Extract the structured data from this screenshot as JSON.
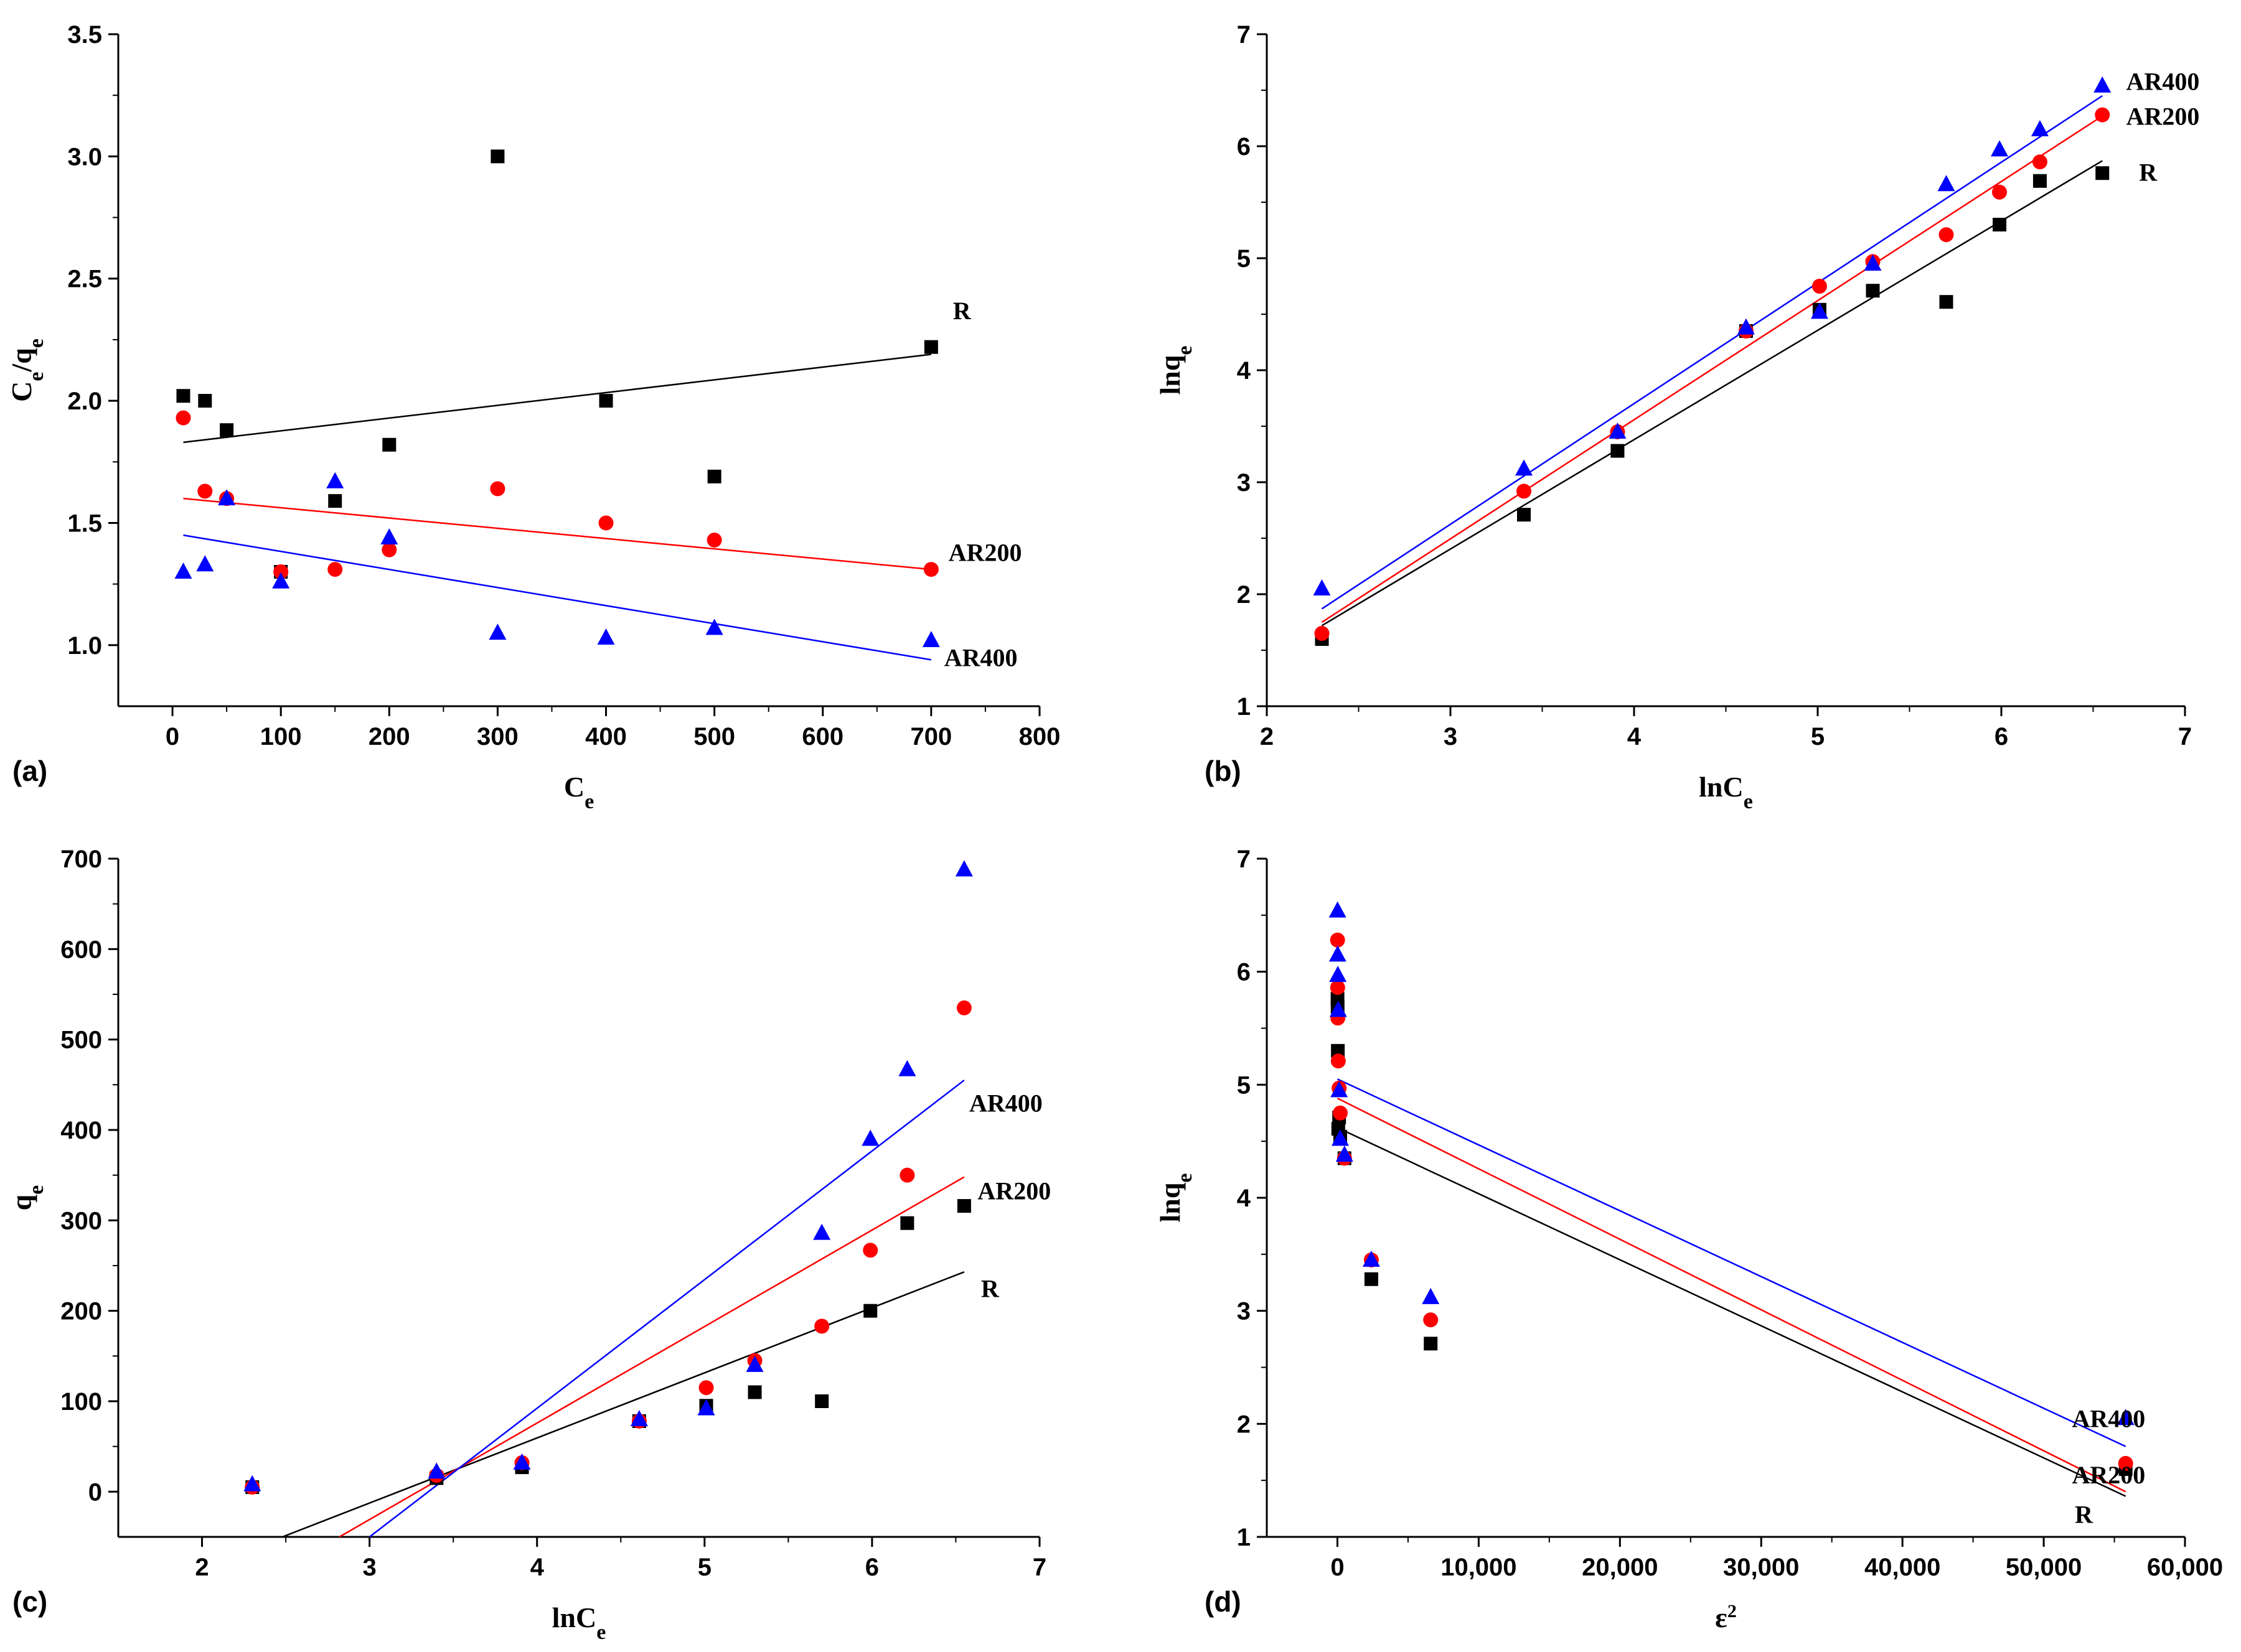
{
  "colors": {
    "R": "#000000",
    "AR200": "#ff0000",
    "AR400": "#0000ff"
  },
  "chart_data": [
    {
      "panel": "(a)",
      "type": "scatter",
      "xlabel": "C",
      "xlabel_sub": "e",
      "ylabel": "C",
      "ylabel_sub": "e",
      "ylabel_mid": "/q",
      "ylabel_sub2": "e",
      "xlim": [
        -50,
        800
      ],
      "ylim": [
        0.75,
        3.5
      ],
      "xticks": [
        0,
        100,
        200,
        300,
        400,
        500,
        600,
        700,
        800
      ],
      "xtick_labels": [
        "0",
        "100",
        "200",
        "300",
        "400",
        "500",
        "600",
        "700",
        "800"
      ],
      "yticks": [
        1.0,
        1.5,
        2.0,
        2.5,
        3.0,
        3.5
      ],
      "ytick_labels": [
        "1.0",
        "1.5",
        "2.0",
        "2.5",
        "3.0",
        "3.5"
      ],
      "series": [
        {
          "name": "R",
          "marker": "square",
          "x": [
            10,
            30,
            50,
            100,
            150,
            200,
            300,
            400,
            500,
            700
          ],
          "y": [
            2.02,
            2.0,
            1.88,
            1.3,
            1.59,
            1.82,
            3.0,
            2.0,
            1.69,
            2.22
          ],
          "fit": {
            "x": [
              10,
              700
            ],
            "y": [
              1.83,
              2.19
            ]
          }
        },
        {
          "name": "AR200",
          "marker": "circle",
          "x": [
            10,
            30,
            50,
            100,
            150,
            200,
            300,
            400,
            500,
            700
          ],
          "y": [
            1.93,
            1.63,
            1.6,
            1.3,
            1.31,
            1.39,
            1.64,
            1.5,
            1.43,
            1.31
          ],
          "fit": {
            "x": [
              10,
              700
            ],
            "y": [
              1.6,
              1.31
            ]
          }
        },
        {
          "name": "AR400",
          "marker": "triangle",
          "x": [
            10,
            30,
            50,
            100,
            150,
            200,
            300,
            400,
            500,
            700
          ],
          "y": [
            1.3,
            1.33,
            1.6,
            1.26,
            1.67,
            1.44,
            1.05,
            1.03,
            1.07,
            1.02
          ],
          "fit": {
            "x": [
              10,
              700
            ],
            "y": [
              1.45,
              0.94
            ]
          }
        }
      ],
      "labels": [
        {
          "text": "R",
          "x": 720,
          "y": 2.37
        },
        {
          "text": "AR200",
          "x": 716,
          "y": 1.38
        },
        {
          "text": "AR400",
          "x": 712,
          "y": 0.95
        }
      ]
    },
    {
      "panel": "(b)",
      "type": "scatter",
      "xlabel": "lnC",
      "xlabel_sub": "e",
      "ylabel": "lnq",
      "ylabel_sub": "e",
      "xlim": [
        2,
        7
      ],
      "ylim": [
        1,
        7
      ],
      "xticks": [
        2,
        3,
        4,
        5,
        6,
        7
      ],
      "xtick_labels": [
        "2",
        "3",
        "4",
        "5",
        "6",
        "7"
      ],
      "yticks": [
        1,
        2,
        3,
        4,
        5,
        6,
        7
      ],
      "ytick_labels": [
        "1",
        "2",
        "3",
        "4",
        "5",
        "6",
        "7"
      ],
      "series": [
        {
          "name": "R",
          "marker": "square",
          "x": [
            2.3,
            3.4,
            3.91,
            4.61,
            5.01,
            5.3,
            5.7,
            5.99,
            6.21,
            6.55
          ],
          "y": [
            1.6,
            2.71,
            3.28,
            4.35,
            4.54,
            4.71,
            4.61,
            5.3,
            5.69,
            5.76
          ],
          "fit": {
            "x": [
              2.3,
              6.55
            ],
            "y": [
              1.72,
              5.87
            ]
          }
        },
        {
          "name": "AR200",
          "marker": "circle",
          "x": [
            2.3,
            3.4,
            3.91,
            4.61,
            5.01,
            5.3,
            5.7,
            5.99,
            6.21,
            6.55
          ],
          "y": [
            1.65,
            2.92,
            3.45,
            4.35,
            4.75,
            4.97,
            5.21,
            5.59,
            5.86,
            6.28
          ],
          "fit": {
            "x": [
              2.3,
              6.55
            ],
            "y": [
              1.75,
              6.27
            ]
          }
        },
        {
          "name": "AR400",
          "marker": "triangle",
          "x": [
            2.3,
            3.4,
            3.91,
            4.61,
            5.01,
            5.3,
            5.7,
            5.99,
            6.21,
            6.55
          ],
          "y": [
            2.05,
            3.12,
            3.45,
            4.38,
            4.52,
            4.95,
            5.66,
            5.97,
            6.15,
            6.54
          ],
          "fit": {
            "x": [
              2.3,
              6.55
            ],
            "y": [
              1.87,
              6.45
            ]
          }
        }
      ],
      "labels": [
        {
          "text": "AR400",
          "x": 6.68,
          "y": 6.58
        },
        {
          "text": "AR200",
          "x": 6.68,
          "y": 6.27
        },
        {
          "text": "R",
          "x": 6.75,
          "y": 5.77
        }
      ]
    },
    {
      "panel": "(c)",
      "type": "scatter",
      "xlabel": "lnC",
      "xlabel_sub": "e",
      "ylabel": "q",
      "ylabel_sub": "e",
      "xlim": [
        1.5,
        7
      ],
      "ylim": [
        -50,
        700
      ],
      "xticks": [
        2,
        3,
        4,
        5,
        6,
        7
      ],
      "xtick_labels": [
        "2",
        "3",
        "4",
        "5",
        "6",
        "7"
      ],
      "yticks": [
        0,
        100,
        200,
        300,
        400,
        500,
        600,
        700
      ],
      "ytick_labels": [
        "0",
        "100",
        "200",
        "300",
        "400",
        "500",
        "600",
        "700"
      ],
      "series": [
        {
          "name": "R",
          "marker": "square",
          "x": [
            2.3,
            3.4,
            3.91,
            4.61,
            5.01,
            5.3,
            5.7,
            5.99,
            6.21,
            6.55
          ],
          "y": [
            5,
            15,
            27,
            78,
            95,
            110,
            100,
            200,
            297,
            316
          ],
          "fit": {
            "x": [
              2.48,
              6.55
            ],
            "y": [
              -50,
              243
            ]
          }
        },
        {
          "name": "AR200",
          "marker": "circle",
          "x": [
            2.3,
            3.4,
            3.91,
            4.61,
            5.01,
            5.3,
            5.7,
            5.99,
            6.21,
            6.55
          ],
          "y": [
            5,
            18,
            32,
            78,
            115,
            145,
            183,
            267,
            350,
            535
          ],
          "fit": {
            "x": [
              2.82,
              6.55
            ],
            "y": [
              -50,
              348
            ]
          }
        },
        {
          "name": "AR400",
          "marker": "triangle",
          "x": [
            2.3,
            3.4,
            3.91,
            4.61,
            5.01,
            5.3,
            5.7,
            5.99,
            6.21,
            6.55
          ],
          "y": [
            8,
            22,
            32,
            80,
            92,
            140,
            286,
            390,
            467,
            688
          ],
          "fit": {
            "x": [
              3.0,
              6.55
            ],
            "y": [
              -50,
              455
            ]
          }
        }
      ],
      "labels": [
        {
          "text": "AR400",
          "x": 6.58,
          "y": 430
        },
        {
          "text": "AR200",
          "x": 6.63,
          "y": 333
        },
        {
          "text": "R",
          "x": 6.65,
          "y": 225
        }
      ]
    },
    {
      "panel": "(d)",
      "type": "scatter",
      "xlabel": "ε",
      "xlabel_sup": "2",
      "ylabel": "lnq",
      "ylabel_sub": "e",
      "xlim": [
        -5000,
        60000
      ],
      "ylim": [
        1,
        7
      ],
      "xticks": [
        0,
        10000,
        20000,
        30000,
        40000,
        50000,
        60000
      ],
      "xtick_labels": [
        "0",
        "10,000",
        "20,000",
        "30,000",
        "40,000",
        "50,000",
        "60,000"
      ],
      "yticks": [
        1,
        2,
        3,
        4,
        5,
        6,
        7
      ],
      "ytick_labels": [
        "1",
        "2",
        "3",
        "4",
        "5",
        "6",
        "7"
      ],
      "series": [
        {
          "name": "R",
          "marker": "square",
          "x": [
            55800,
            6600,
            2400,
            500,
            200,
            120,
            60,
            30,
            15,
            8
          ],
          "y": [
            1.6,
            2.71,
            3.28,
            4.35,
            4.54,
            4.71,
            4.61,
            5.3,
            5.69,
            5.76
          ],
          "fit": {
            "x": [
              0,
              55800
            ],
            "y": [
              4.62,
              1.36
            ]
          }
        },
        {
          "name": "AR200",
          "marker": "circle",
          "x": [
            55800,
            6600,
            2400,
            500,
            200,
            120,
            60,
            30,
            15,
            8
          ],
          "y": [
            1.65,
            2.92,
            3.45,
            4.35,
            4.75,
            4.97,
            5.21,
            5.59,
            5.86,
            6.28
          ],
          "fit": {
            "x": [
              0,
              55800
            ],
            "y": [
              4.88,
              1.4
            ]
          }
        },
        {
          "name": "AR400",
          "marker": "triangle",
          "x": [
            55800,
            6600,
            2400,
            500,
            200,
            120,
            60,
            30,
            15,
            8
          ],
          "y": [
            2.05,
            3.12,
            3.45,
            4.38,
            4.52,
            4.95,
            5.66,
            5.97,
            6.15,
            6.54
          ],
          "fit": {
            "x": [
              0,
              55800
            ],
            "y": [
              5.05,
              1.8
            ]
          }
        }
      ],
      "labels": [
        {
          "text": "AR400",
          "x": 52000,
          "y": 2.05
        },
        {
          "text": "AR200",
          "x": 52000,
          "y": 1.55
        },
        {
          "text": "R",
          "x": 52200,
          "y": 1.2
        }
      ]
    }
  ]
}
